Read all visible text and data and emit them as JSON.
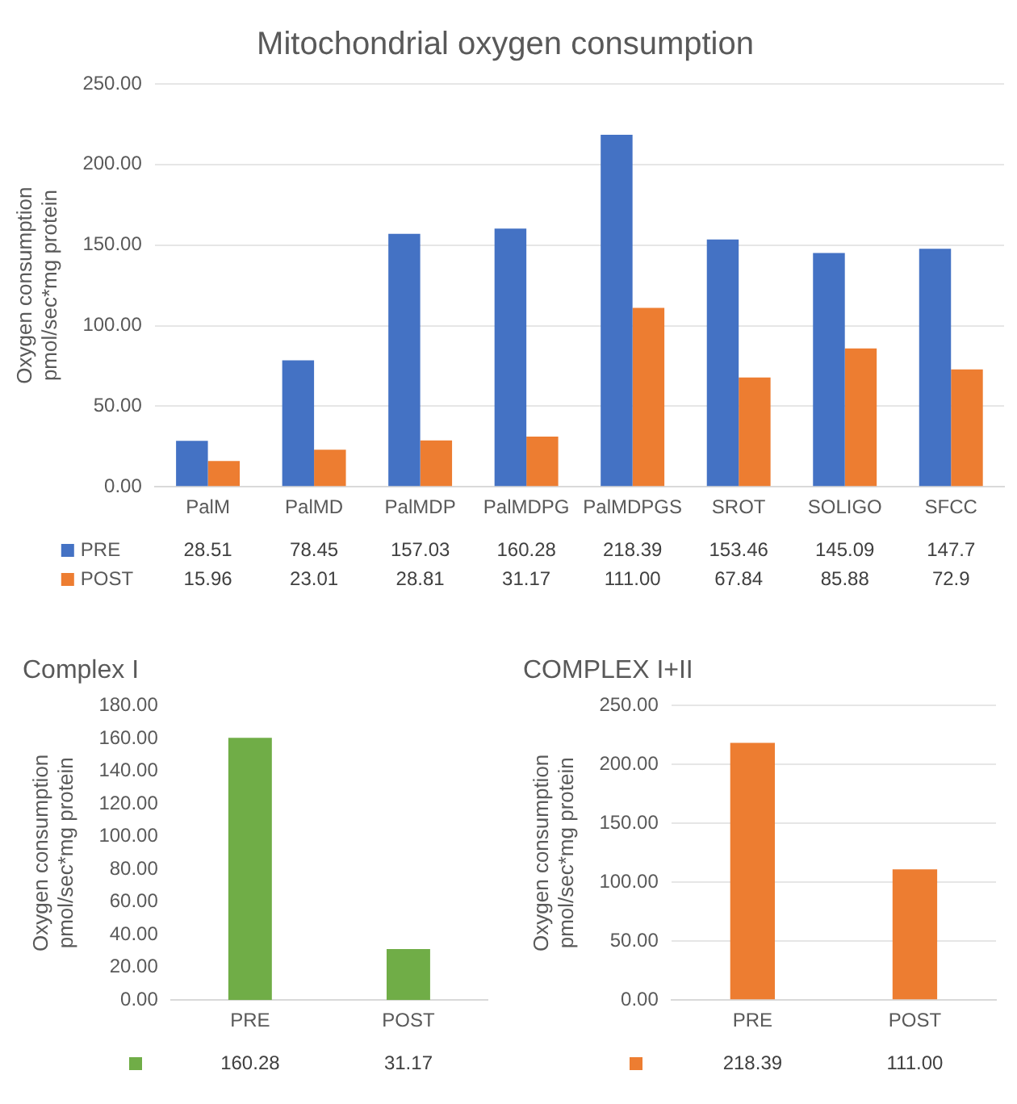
{
  "chart_data": [
    {
      "type": "bar",
      "title": "Mitochondrial oxygen consumption",
      "ylabel": "Oxygen consumption pmol/sec*mg protein",
      "categories": [
        "PalM",
        "PalMD",
        "PalMDP",
        "PalMDPG",
        "PalMDPGS",
        "SROT",
        "SOLIGO",
        "SFCC"
      ],
      "series": [
        {
          "name": "PRE",
          "color": "#4472c4",
          "values": [
            28.51,
            78.45,
            157.03,
            160.28,
            218.39,
            153.46,
            145.09,
            147.7
          ],
          "value_labels": [
            "28.51",
            "78.45",
            "157.03",
            "160.28",
            "218.39",
            "153.46",
            "145.09",
            "147.7"
          ]
        },
        {
          "name": "POST",
          "color": "#ed7d31",
          "values": [
            15.96,
            23.01,
            28.81,
            31.17,
            111.0,
            67.84,
            85.88,
            72.9
          ],
          "value_labels": [
            "15.96",
            "23.01",
            "28.81",
            "31.17",
            "111.00",
            "67.84",
            "85.88",
            "72.9"
          ]
        }
      ],
      "ylim": [
        0,
        250
      ],
      "yticks": [
        {
          "value": 0,
          "label": "0.00"
        },
        {
          "value": 50,
          "label": "50.00"
        },
        {
          "value": 100,
          "label": "100.00"
        },
        {
          "value": 150,
          "label": "150.00"
        },
        {
          "value": 200,
          "label": "200.00"
        },
        {
          "value": 250,
          "label": "250.00"
        }
      ],
      "grid": "y",
      "legend": "bottom"
    },
    {
      "type": "bar",
      "title": "Complex I",
      "ylabel": "Oxygen consumption pmol/sec*mg protein",
      "categories": [
        "PRE",
        "POST"
      ],
      "series": [
        {
          "color": "#70ad47",
          "values": [
            160.28,
            31.17
          ],
          "value_labels": [
            "160.28",
            "31.17"
          ]
        }
      ],
      "ylim": [
        0,
        180
      ],
      "yticks": [
        {
          "value": 0,
          "label": "0.00"
        },
        {
          "value": 20,
          "label": "20.00"
        },
        {
          "value": 40,
          "label": "40.00"
        },
        {
          "value": 60,
          "label": "60.00"
        },
        {
          "value": 80,
          "label": "80.00"
        },
        {
          "value": 100,
          "label": "100.00"
        },
        {
          "value": 120,
          "label": "120.00"
        },
        {
          "value": 140,
          "label": "140.00"
        },
        {
          "value": 160,
          "label": "160.00"
        },
        {
          "value": 180,
          "label": "180.00"
        }
      ]
    },
    {
      "type": "bar",
      "title": "COMPLEX I+II",
      "ylabel": "Oxygen consumption pmol/sec*mg protein",
      "categories": [
        "PRE",
        "POST"
      ],
      "series": [
        {
          "color": "#ed7d31",
          "values": [
            218.39,
            111.0
          ],
          "value_labels": [
            "218.39",
            "111.00"
          ]
        }
      ],
      "ylim": [
        0,
        250
      ],
      "yticks": [
        {
          "value": 0,
          "label": "0.00"
        },
        {
          "value": 50,
          "label": "50.00"
        },
        {
          "value": 100,
          "label": "100.00"
        },
        {
          "value": 150,
          "label": "150.00"
        },
        {
          "value": 200,
          "label": "200.00"
        },
        {
          "value": 250,
          "label": "250.00"
        }
      ],
      "grid": "y"
    }
  ]
}
